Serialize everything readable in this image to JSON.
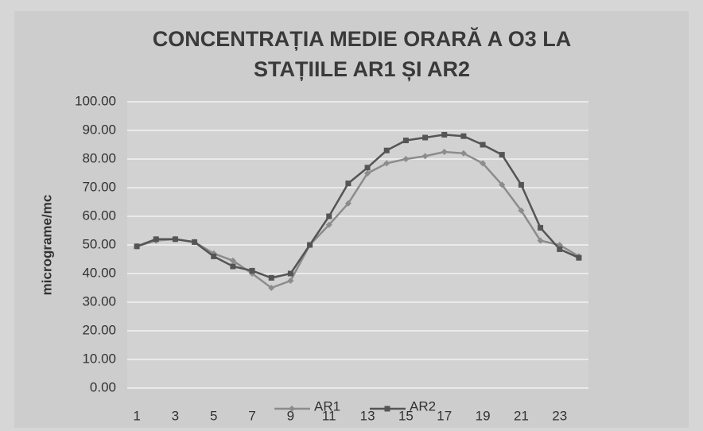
{
  "chart_data": {
    "type": "line",
    "title": "CONCENTRAȚIA MEDIE ORARĂ A O3 LA STAȚIILE AR1 ȘI AR2",
    "y_label": "micrograme/mc",
    "categories": [
      1,
      null,
      3,
      null,
      5,
      null,
      7,
      null,
      9,
      null,
      11,
      null,
      13,
      null,
      15,
      null,
      17,
      null,
      19,
      null,
      21,
      null,
      23,
      null
    ],
    "series": [
      {
        "name": "AR1",
        "color": "#8c8c8c",
        "marker": "diamond",
        "values": [
          49.5,
          51.5,
          52,
          51,
          47,
          44.5,
          40,
          35,
          37.5,
          50,
          57,
          64.5,
          75,
          78.5,
          80,
          81,
          82.5,
          82,
          78.5,
          71,
          62,
          51.5,
          50,
          46
        ]
      },
      {
        "name": "AR2",
        "color": "#555555",
        "marker": "square",
        "values": [
          49.5,
          52,
          52,
          51,
          46,
          42.5,
          41,
          38.5,
          40,
          50,
          60,
          71.5,
          77,
          83,
          86.5,
          87.5,
          88.5,
          88,
          85,
          81.5,
          71,
          56,
          48.5,
          45.5
        ]
      }
    ],
    "ylim": [
      0,
      100
    ],
    "yticks": [
      {
        "value": 0,
        "label": "0.00"
      },
      {
        "value": 10,
        "label": "10.00"
      },
      {
        "value": 20,
        "label": "20.00"
      },
      {
        "value": 30,
        "label": "30.00"
      },
      {
        "value": 40,
        "label": "40.00"
      },
      {
        "value": 50,
        "label": "50.00"
      },
      {
        "value": 60,
        "label": "60.00"
      },
      {
        "value": 70,
        "label": "70.00"
      },
      {
        "value": 80,
        "label": "80.00"
      },
      {
        "value": 90,
        "label": "90.00"
      },
      {
        "value": 100,
        "label": "100.00"
      }
    ],
    "grid": true,
    "legend": "bottom"
  }
}
